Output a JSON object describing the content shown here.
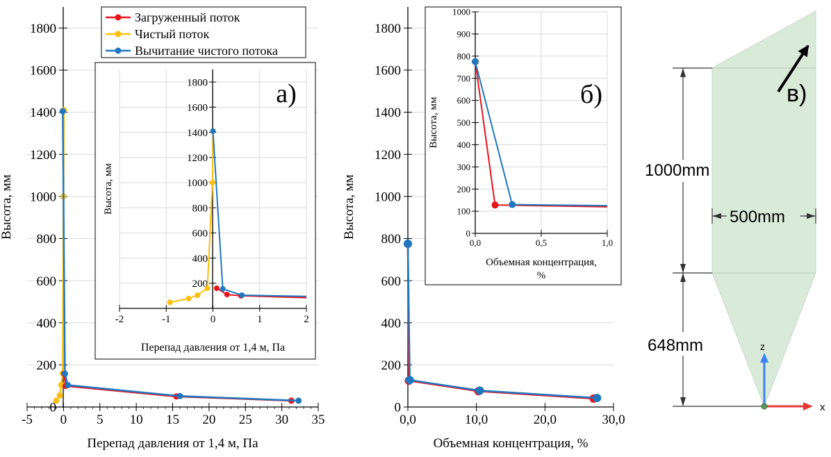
{
  "chart_data": [
    {
      "id": "a-main",
      "type": "line",
      "panel_label": "",
      "xlabel": "Перепад давления от 1,4 м, Па",
      "ylabel": "Высота, мм",
      "xlim": [
        -5,
        35
      ],
      "ylim": [
        0,
        1900
      ],
      "xticks": [
        -5,
        0,
        5,
        10,
        15,
        20,
        25,
        30,
        35
      ],
      "xtick_labels": [
        "-5",
        "0",
        "5",
        "10",
        "15",
        "20",
        "25",
        "30",
        "35"
      ],
      "yticks": [
        0,
        200,
        400,
        600,
        800,
        1000,
        1200,
        1400,
        1600,
        1800
      ],
      "ytick_labels": [
        "0",
        "200",
        "400",
        "600",
        "800",
        "1000",
        "1200",
        "1400",
        "1600",
        "1800"
      ],
      "legend": [
        {
          "name": "Загруженный поток",
          "color": "#e8141c"
        },
        {
          "name": "Чистый поток",
          "color": "#fbbf0f"
        },
        {
          "name": "Вычитание чистого потока",
          "color": "#1f77c0"
        }
      ],
      "series": [
        {
          "name": "Чистый поток",
          "color": "#fbbf0f",
          "line": true,
          "x": [
            -1.0,
            -0.5,
            -0.3,
            -0.1,
            0.0,
            0.05
          ],
          "y": [
            30,
            55,
            105,
            160,
            1000,
            1410
          ]
        },
        {
          "name": "Загруженный поток",
          "color": "#e8141c",
          "line": true,
          "x": [
            0.1,
            0.3,
            15.5,
            31.3
          ],
          "y": [
            158,
            100,
            50,
            30
          ]
        },
        {
          "name": "Вычитание чистого потока",
          "color": "#1f77c0",
          "line": true,
          "x": [
            -0.1,
            0.2,
            0.6,
            16.0,
            32.3
          ],
          "y": [
            1405,
            158,
            104,
            52,
            30
          ]
        }
      ]
    },
    {
      "id": "a-inset",
      "type": "line",
      "panel_label": "а)",
      "xlabel": "Перепад давления от 1,4 м, Па",
      "ylabel": "Высота, мм",
      "xlim": [
        -2,
        2
      ],
      "ylim": [
        0,
        1900
      ],
      "xticks": [
        -2,
        -1,
        0,
        1,
        2
      ],
      "xtick_labels": [
        "-2",
        "-1",
        "0",
        "1",
        "2"
      ],
      "yticks": [
        200,
        400,
        600,
        800,
        1000,
        1200,
        1400,
        1600,
        1800
      ],
      "ytick_labels": [
        "200",
        "400",
        "600",
        "800",
        "1000",
        "1200",
        "1400",
        "1600",
        "1800"
      ],
      "series": [
        {
          "name": "Чистый поток",
          "color": "#fbbf0f",
          "line": true,
          "x": [
            -0.92,
            -0.52,
            -0.33,
            -0.12,
            -0.01,
            0.0
          ],
          "y": [
            48,
            78,
            105,
            160,
            1000,
            1410
          ]
        },
        {
          "name": "Загруженный поток",
          "color": "#e8141c",
          "line": true,
          "x": [
            0.08,
            0.3,
            0.6,
            2.0
          ],
          "y": [
            160,
            110,
            100,
            85
          ]
        },
        {
          "name": "Вычитание чистого потока",
          "color": "#1f77c0",
          "line": true,
          "x": [
            0.0,
            0.21,
            0.62,
            2.0
          ],
          "y": [
            1410,
            155,
            105,
            95
          ]
        }
      ]
    },
    {
      "id": "b-main",
      "type": "line",
      "panel_label": "",
      "xlabel": "Объемная концентрация, %",
      "ylabel": "Высота, мм",
      "xlim": [
        0,
        30
      ],
      "ylim": [
        0,
        1900
      ],
      "xticks": [
        0,
        10,
        20,
        30
      ],
      "xtick_labels": [
        "0,0",
        "10,0",
        "20,0",
        "30,0"
      ],
      "yticks": [
        0,
        200,
        400,
        600,
        800,
        1000,
        1200,
        1400,
        1600,
        1800
      ],
      "ytick_labels": [
        "0",
        "200",
        "400",
        "600",
        "800",
        "1000",
        "1200",
        "1400",
        "1600",
        "1800"
      ],
      "series": [
        {
          "name": "Загруженный поток",
          "color": "#e8141c",
          "line": true,
          "x": [
            0.0,
            0.15,
            10.3,
            27.1
          ],
          "y": [
            775,
            125,
            75,
            40
          ]
        },
        {
          "name": "Вычитание чистого потока",
          "color": "#1f77c0",
          "line": true,
          "x": [
            0.0,
            0.28,
            10.5,
            27.6
          ],
          "y": [
            775,
            128,
            78,
            43
          ]
        }
      ]
    },
    {
      "id": "b-inset",
      "type": "line",
      "panel_label": "б)",
      "xlabel": "Объемная концентрация, %",
      "ylabel": "Высота, мм",
      "xlim": [
        0,
        1.0
      ],
      "ylim": [
        0,
        1000
      ],
      "xticks": [
        0,
        0.5,
        1.0
      ],
      "xtick_labels": [
        "0,0",
        "0,5",
        "1,0"
      ],
      "yticks": [
        0,
        100,
        200,
        300,
        400,
        500,
        600,
        700,
        800,
        900,
        1000
      ],
      "ytick_labels": [
        "0",
        "100",
        "200",
        "300",
        "400",
        "500",
        "600",
        "700",
        "800",
        "900",
        "1000"
      ],
      "series": [
        {
          "name": "Загруженный поток",
          "color": "#e8141c",
          "line": true,
          "x": [
            0.0,
            0.15,
            1.0
          ],
          "y": [
            775,
            128,
            120
          ]
        },
        {
          "name": "Вычитание чистого потока",
          "color": "#1f77c0",
          "line": true,
          "x": [
            0.0,
            0.28,
            1.0
          ],
          "y": [
            775,
            130,
            125
          ]
        }
      ]
    }
  ],
  "diagram": {
    "panel_label": "в)",
    "dimensions": [
      "1000mm",
      "500mm",
      "648mm"
    ],
    "axis_labels": {
      "z": "z",
      "x": "x"
    }
  }
}
